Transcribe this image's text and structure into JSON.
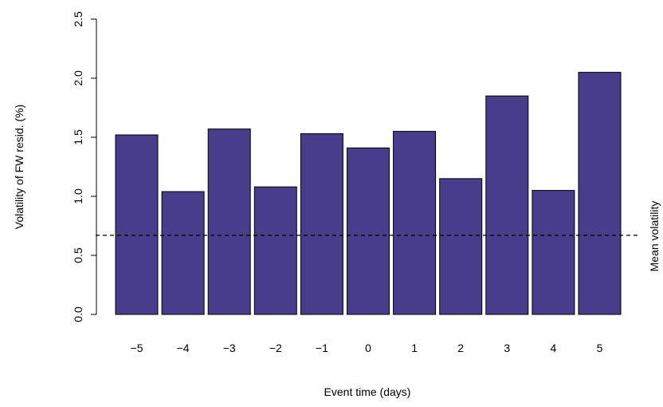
{
  "chart_data": {
    "type": "bar",
    "title": "",
    "xlabel": "Event time (days)",
    "ylabel": "Volatility of FW resid. (%)",
    "categories": [
      "−5",
      "−4",
      "−3",
      "−2",
      "−1",
      "0",
      "1",
      "2",
      "3",
      "4",
      "5"
    ],
    "values": [
      1.52,
      1.04,
      1.57,
      1.08,
      1.53,
      1.41,
      1.55,
      1.15,
      1.85,
      1.05,
      2.05
    ],
    "ylim": [
      0,
      2.5
    ],
    "yticks": [
      "0.0",
      "0.5",
      "1.0",
      "1.5",
      "2.0",
      "2.5"
    ],
    "reference_line": {
      "label": "Mean volatility",
      "value": 0.67,
      "style": "dashed"
    },
    "grid": false,
    "legend": "none",
    "bar_color": "#483D8B",
    "bar_border_color": "#000000"
  }
}
